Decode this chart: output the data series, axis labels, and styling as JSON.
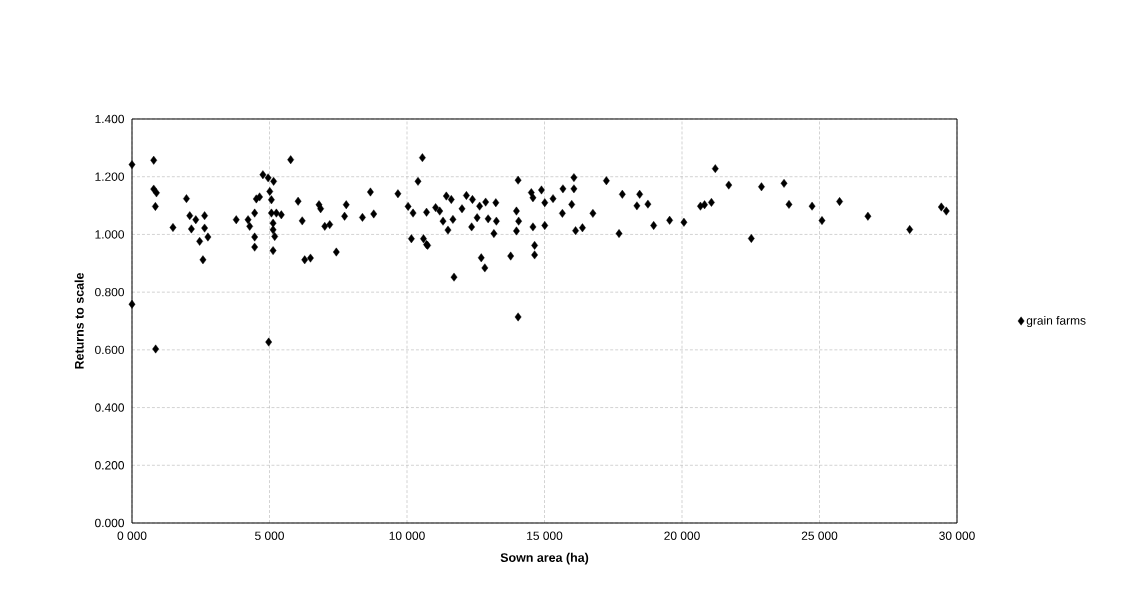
{
  "chart_data": {
    "type": "scatter",
    "xlabel": "Sown area (ha)",
    "ylabel": "Returns to scale",
    "xlim": [
      0,
      30000
    ],
    "ylim": [
      0,
      1.4
    ],
    "xticks": [
      {
        "value": 0,
        "label": "0 000"
      },
      {
        "value": 5000,
        "label": "5 000"
      },
      {
        "value": 10000,
        "label": "10 000"
      },
      {
        "value": 15000,
        "label": "15 000"
      },
      {
        "value": 20000,
        "label": "20 000"
      },
      {
        "value": 25000,
        "label": "25 000"
      },
      {
        "value": 30000,
        "label": "30 000"
      }
    ],
    "yticks": [
      {
        "value": 0,
        "label": "0.000"
      },
      {
        "value": 0.2,
        "label": "0.200"
      },
      {
        "value": 0.4,
        "label": "0.400"
      },
      {
        "value": 0.6,
        "label": "0.600"
      },
      {
        "value": 0.8,
        "label": "0.800"
      },
      {
        "value": 1.0,
        "label": "1.000"
      },
      {
        "value": 1.2,
        "label": "1.200"
      },
      {
        "value": 1.4,
        "label": "1.400"
      }
    ],
    "grid": true,
    "legend": "right",
    "marker": "diamond",
    "series": [
      {
        "name": "grain farms",
        "color": "#000000",
        "x": [
          0,
          790,
          790,
          890,
          850,
          1490,
          1980,
          2100,
          2160,
          2320,
          2460,
          2580,
          2640,
          2640,
          2760,
          3790,
          4220,
          4280,
          4460,
          4460,
          4460,
          4520,
          4640,
          4760,
          4950,
          5150,
          5010,
          5070,
          5070,
          5250,
          5430,
          5130,
          5130,
          5190,
          5130,
          5770,
          6040,
          6190,
          6280,
          6490,
          6800,
          6860,
          7010,
          7190,
          7430,
          7730,
          7790,
          8380,
          8670,
          8790,
          9670,
          10040,
          10220,
          10160,
          10400,
          0,
          860,
          4970,
          10560,
          10710,
          10710,
          10600,
          10750,
          11040,
          11190,
          11310,
          11430,
          11610,
          11670,
          11490,
          12000,
          12160,
          12380,
          12350,
          12550,
          12640,
          12860,
          12950,
          13230,
          13250,
          13160,
          12700,
          12830,
          11710,
          13980,
          14040,
          13980,
          14060,
          13770,
          14040,
          14520,
          14580,
          14890,
          14580,
          14640,
          14640,
          15010,
          15010,
          15310,
          15650,
          15670,
          15990,
          16070,
          16070,
          16130,
          16380,
          16760,
          17250,
          17710,
          17830,
          18460,
          18360,
          18760,
          18970,
          19550,
          20070,
          20670,
          20820,
          21070,
          21210,
          21700,
          22520,
          22890,
          23710,
          23890,
          24730,
          25090,
          25730,
          26760,
          28280,
          29430,
          29610
        ],
        "values": [
          1.242,
          1.257,
          1.157,
          1.144,
          1.097,
          1.024,
          1.124,
          1.065,
          1.019,
          1.051,
          0.976,
          0.912,
          1.065,
          1.022,
          0.991,
          1.051,
          1.051,
          1.028,
          1.074,
          0.991,
          0.956,
          1.123,
          1.13,
          1.207,
          1.196,
          1.184,
          1.149,
          1.12,
          1.074,
          1.074,
          1.068,
          1.039,
          1.016,
          0.993,
          0.944,
          1.259,
          1.115,
          1.047,
          0.912,
          0.918,
          1.103,
          1.089,
          1.028,
          1.034,
          0.939,
          1.063,
          1.103,
          1.059,
          1.147,
          1.071,
          1.141,
          1.097,
          1.074,
          0.985,
          1.184,
          0.758,
          0.603,
          0.627,
          1.266,
          1.077,
          0.965,
          0.985,
          0.962,
          1.093,
          1.081,
          1.046,
          1.133,
          1.121,
          1.052,
          1.015,
          1.089,
          1.135,
          1.121,
          1.026,
          1.058,
          1.098,
          1.112,
          1.054,
          1.11,
          1.046,
          1.003,
          0.919,
          0.884,
          0.852,
          1.081,
          1.188,
          1.012,
          1.046,
          0.925,
          0.714,
          1.145,
          1.127,
          1.154,
          1.026,
          0.962,
          0.929,
          1.031,
          1.11,
          1.124,
          1.073,
          1.158,
          1.104,
          1.197,
          1.158,
          1.013,
          1.023,
          1.073,
          1.186,
          1.003,
          1.139,
          1.139,
          1.099,
          1.105,
          1.031,
          1.049,
          1.042,
          1.098,
          1.103,
          1.111,
          1.228,
          1.171,
          0.986,
          1.165,
          1.177,
          1.104,
          1.098,
          1.048,
          1.114,
          1.063,
          1.017,
          1.095,
          1.081
        ]
      }
    ]
  }
}
